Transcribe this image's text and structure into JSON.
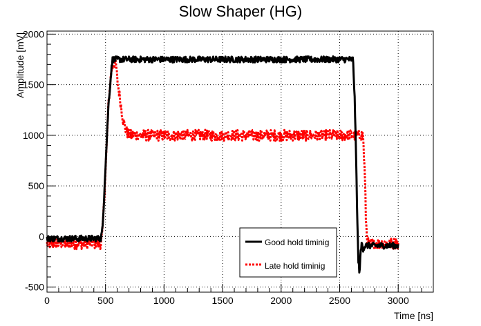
{
  "chart_data": {
    "type": "line",
    "title": "Slow Shaper (HG)",
    "xlabel": "Time [ns]",
    "ylabel": "Amplitude [mV]",
    "xlim": [
      0,
      3300
    ],
    "ylim": [
      -550,
      2030
    ],
    "grid": true,
    "legend_position": "bottom-right",
    "x_ticks": [
      0,
      500,
      1000,
      1500,
      2000,
      2500,
      3000
    ],
    "x_tick_labels": [
      "0",
      "500",
      "1000",
      "1500",
      "2000",
      "2500",
      "3000"
    ],
    "y_ticks": [
      -500,
      0,
      500,
      1000,
      1500,
      2000
    ],
    "y_tick_labels": [
      "-500",
      "0",
      "500",
      "1000",
      "1500",
      "2000"
    ],
    "series": [
      {
        "name": "Good hold timinig",
        "color": "#000000",
        "style": "solid",
        "noise": 30,
        "x": [
          0,
          460,
          475,
          500,
          525,
          550,
          560,
          575,
          600,
          650,
          700,
          1000,
          1500,
          2000,
          2500,
          2615,
          2630,
          2640,
          2650,
          2660,
          2670,
          2680,
          2690,
          2700,
          2720,
          3000
        ],
        "y": [
          -20,
          -20,
          80,
          700,
          1300,
          1650,
          1750,
          1750,
          1750,
          1750,
          1750,
          1750,
          1750,
          1750,
          1750,
          1750,
          1300,
          800,
          200,
          -250,
          -350,
          -150,
          -60,
          -120,
          -90,
          -90
        ]
      },
      {
        "name": "Late hold timinig",
        "color": "#ff0000",
        "style": "dashed",
        "noise": 55,
        "x": [
          0,
          460,
          475,
          500,
          525,
          550,
          575,
          590,
          600,
          625,
          650,
          675,
          700,
          750,
          1000,
          1500,
          2000,
          2500,
          2700,
          2715,
          2725,
          2735,
          2750,
          2800,
          3000
        ],
        "y": [
          -70,
          -70,
          50,
          650,
          1300,
          1650,
          1720,
          1700,
          1550,
          1350,
          1150,
          1050,
          1000,
          1000,
          1000,
          1000,
          1000,
          1000,
          1000,
          600,
          150,
          -50,
          -80,
          -70,
          -70
        ]
      }
    ]
  }
}
